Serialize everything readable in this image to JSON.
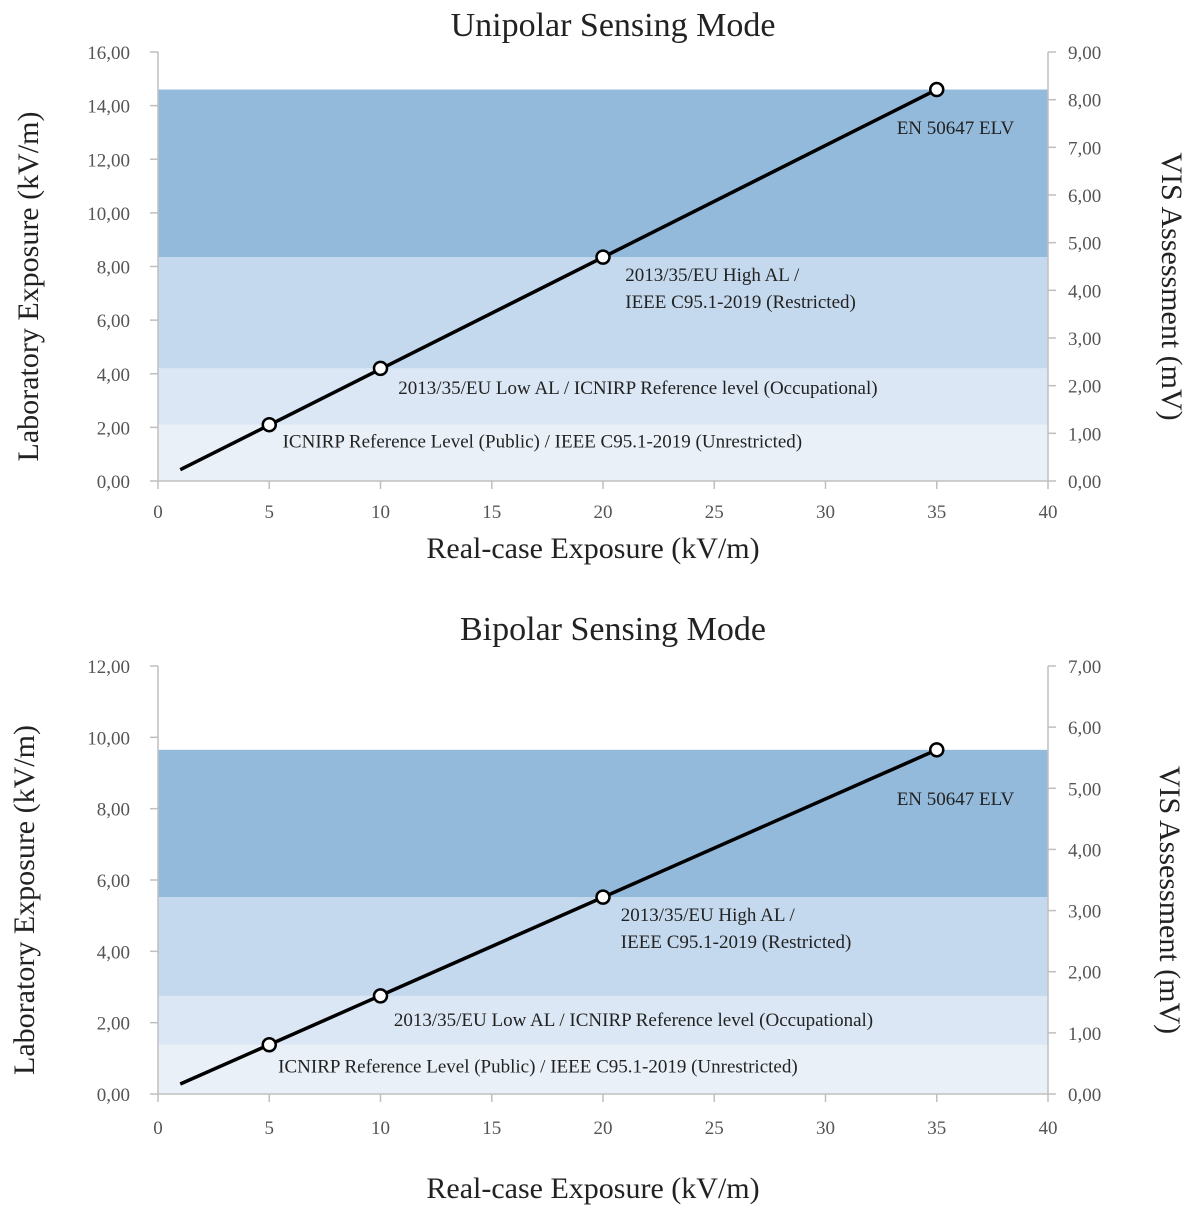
{
  "chart_data": [
    {
      "type": "line",
      "title": "Unipolar Sensing Mode",
      "xlabel": "Real-case Exposure (kV/m)",
      "ylabel": "Laboratory Exposure (kV/m)",
      "y2label": "VIS Assessment (mV)",
      "xlim": [
        0,
        40
      ],
      "ylim": [
        0,
        16
      ],
      "y2lim": [
        0,
        9
      ],
      "xticks": [
        "0",
        "5",
        "10",
        "15",
        "20",
        "25",
        "30",
        "35",
        "40"
      ],
      "yticks": [
        "0,00",
        "2,00",
        "4,00",
        "6,00",
        "8,00",
        "10,00",
        "12,00",
        "14,00",
        "16,00"
      ],
      "y2ticks": [
        "0,00",
        "1,00",
        "2,00",
        "3,00",
        "4,00",
        "5,00",
        "6,00",
        "7,00",
        "8,00",
        "9,00"
      ],
      "line": {
        "x": [
          1,
          35
        ],
        "y": [
          0.42,
          14.6
        ]
      },
      "markers": {
        "x": [
          5,
          10,
          20,
          35
        ],
        "y": [
          2.1,
          4.2,
          8.35,
          14.6
        ]
      },
      "bands": [
        {
          "y0": 0,
          "y1": 2.1,
          "color": "#e9f0f8",
          "label_lines": [
            "ICNIRP Reference Level (Public) / IEEE C95.1-2019 (Unrestricted)"
          ],
          "label_x": 5.6,
          "label_y": 1.25
        },
        {
          "y0": 2.1,
          "y1": 4.2,
          "color": "#dbe7f4",
          "label_lines": [
            "2013/35/EU Low AL / ICNIRP Reference level (Occupational)"
          ],
          "label_x": 10.8,
          "label_y": 3.25
        },
        {
          "y0": 4.2,
          "y1": 8.35,
          "color": "#c5d9ee",
          "label_lines": [
            "2013/35/EU High AL /",
            "IEEE C95.1-2019 (Restricted)"
          ],
          "label_x": 21,
          "label_y": 7.45
        },
        {
          "y0": 8.35,
          "y1": 14.6,
          "color": "#93b9db",
          "label_lines": [
            "EN 50647 ELV"
          ],
          "label_x": 33.2,
          "label_y": 12.95
        }
      ]
    },
    {
      "type": "line",
      "title": "Bipolar Sensing Mode",
      "xlabel": "Real-case Exposure (kV/m)",
      "ylabel": "Laboratory Exposure (kV/m)",
      "y2label": "VIS Assessment (mV)",
      "xlim": [
        0,
        40
      ],
      "ylim": [
        0,
        12
      ],
      "y2lim": [
        0,
        7
      ],
      "xticks": [
        "0",
        "5",
        "10",
        "15",
        "20",
        "25",
        "30",
        "35",
        "40"
      ],
      "yticks": [
        "0,00",
        "2,00",
        "4,00",
        "6,00",
        "8,00",
        "10,00",
        "12,00"
      ],
      "y2ticks": [
        "0,00",
        "1,00",
        "2,00",
        "3,00",
        "4,00",
        "5,00",
        "6,00",
        "7,00"
      ],
      "line": {
        "x": [
          1,
          35
        ],
        "y": [
          0.28,
          9.65
        ]
      },
      "markers": {
        "x": [
          5,
          10,
          20,
          35
        ],
        "y": [
          1.38,
          2.75,
          5.52,
          9.65
        ]
      },
      "bands": [
        {
          "y0": 0,
          "y1": 1.38,
          "color": "#e9f0f8",
          "label_lines": [
            "ICNIRP Reference Level (Public) / IEEE C95.1-2019 (Unrestricted)"
          ],
          "label_x": 5.4,
          "label_y": 0.6
        },
        {
          "y0": 1.38,
          "y1": 2.75,
          "color": "#dbe7f4",
          "label_lines": [
            "2013/35/EU Low AL / ICNIRP Reference level (Occupational)"
          ],
          "label_x": 10.6,
          "label_y": 1.9
        },
        {
          "y0": 2.75,
          "y1": 5.52,
          "color": "#c5d9ee",
          "label_lines": [
            "2013/35/EU High AL /",
            "IEEE C95.1-2019 (Restricted)"
          ],
          "label_x": 20.8,
          "label_y": 4.85
        },
        {
          "y0": 5.52,
          "y1": 9.65,
          "color": "#93b9db",
          "label_lines": [
            "EN 50647 ELV"
          ],
          "label_x": 33.2,
          "label_y": 8.1
        }
      ]
    }
  ]
}
